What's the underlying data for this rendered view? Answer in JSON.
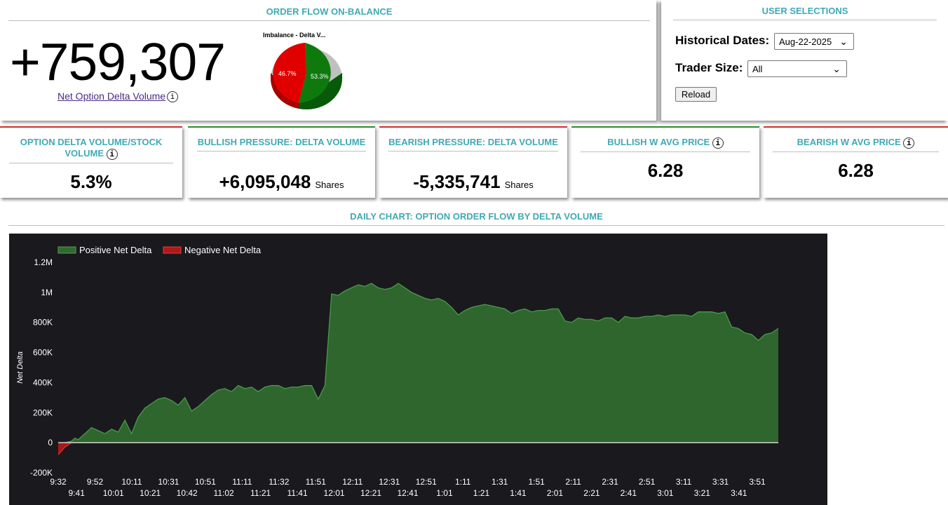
{
  "orderflow": {
    "title": "ORDER FLOW ON-BALANCE",
    "net_value": "+759,307",
    "net_label": "Net Option Delta Volume",
    "info": "i",
    "pie": {
      "title": "Imbalance - Delta V...",
      "slices": [
        {
          "label": "53.3%",
          "value": 53.3,
          "color": "#0e7a0e"
        },
        {
          "label": "46.7%",
          "value": 46.7,
          "color": "#e00000"
        }
      ]
    }
  },
  "user_selections": {
    "title": "USER SELECTIONS",
    "historical_label": "Historical Dates:",
    "historical_value": "Aug-22-2025",
    "trader_label": "Trader Size:",
    "trader_value": "All",
    "reload": "Reload"
  },
  "cards": [
    {
      "title": "OPTION DELTA VOLUME/STOCK VOLUME",
      "value": "5.3%",
      "units": "",
      "info": "i"
    },
    {
      "title": "BULLISH PRESSURE: DELTA VOLUME",
      "value": "+6,095,048",
      "units": "Shares"
    },
    {
      "title": "BEARISH PRESSURE: DELTA VOLUME",
      "value": "-5,335,741",
      "units": "Shares"
    },
    {
      "title": "BULLISH W AVG PRICE",
      "value": "6.28",
      "info": "i"
    },
    {
      "title": "BEARISH W AVG PRICE",
      "value": "6.28",
      "info": "i"
    }
  ],
  "chart_title": "DAILY CHART: OPTION ORDER FLOW BY DELTA VOLUME",
  "colors": {
    "accent": "#3fa9b5",
    "positive": "#2f6a2f",
    "negative": "#b01818",
    "chart_bg": "#1a1a1e"
  },
  "chart_data": {
    "type": "area",
    "title": "DAILY CHART: OPTION ORDER FLOW BY DELTA VOLUME",
    "ylabel": "Net Delta",
    "xlabel": "",
    "ylim": [
      -200000,
      1200000
    ],
    "y_ticks": [
      "1.2M",
      "1M",
      "800K",
      "600K",
      "400K",
      "200K",
      "0",
      "-200K"
    ],
    "y_tick_values": [
      1200000,
      1000000,
      800000,
      600000,
      400000,
      200000,
      0,
      -200000
    ],
    "x_labels_top": [
      "9:32",
      "9:52",
      "10:11",
      "10:31",
      "10:51",
      "11:11",
      "11:32",
      "11:51",
      "12:11",
      "12:31",
      "12:51",
      "1:11",
      "1:31",
      "1:51",
      "2:11",
      "2:31",
      "2:51",
      "3:11",
      "3:31",
      "3:51"
    ],
    "x_labels_bottom": [
      "9:41",
      "10:01",
      "10:21",
      "10:42",
      "11:02",
      "11:21",
      "11:41",
      "12:01",
      "12:21",
      "12:41",
      "1:01",
      "1:21",
      "1:41",
      "2:01",
      "2:21",
      "2:41",
      "3:01",
      "3:21",
      "3:41"
    ],
    "legend": [
      "Positive Net Delta",
      "Negative Net Delta"
    ],
    "series": [
      {
        "name": "Net Delta",
        "x": [
          0,
          2,
          4,
          5,
          6,
          8,
          10,
          12,
          14,
          16,
          18,
          20,
          22,
          24,
          26,
          28,
          30,
          32,
          34,
          36,
          38,
          40,
          42,
          44,
          46,
          48,
          50,
          52,
          54,
          56,
          58,
          60,
          62,
          64,
          66,
          68,
          70,
          72,
          74,
          76,
          78,
          80,
          82,
          84,
          86,
          88,
          90,
          92,
          94,
          96,
          98,
          100,
          102,
          104,
          106,
          108,
          110,
          112,
          114,
          116,
          118,
          120,
          122,
          124,
          126,
          128,
          130,
          132,
          134,
          136,
          138,
          140,
          142,
          144,
          146,
          148,
          150,
          152,
          154,
          156,
          158,
          160,
          162,
          164,
          166,
          168,
          170,
          172,
          174,
          176,
          178,
          180,
          182,
          184,
          186,
          188,
          190,
          192,
          194,
          196,
          198,
          200,
          202,
          204,
          206,
          208,
          210,
          212,
          214,
          216
        ],
        "values": [
          -80000,
          -30000,
          10000,
          30000,
          20000,
          60000,
          100000,
          80000,
          60000,
          90000,
          70000,
          150000,
          60000,
          170000,
          230000,
          260000,
          290000,
          300000,
          280000,
          250000,
          300000,
          210000,
          240000,
          280000,
          320000,
          350000,
          360000,
          340000,
          380000,
          360000,
          370000,
          340000,
          370000,
          380000,
          380000,
          360000,
          370000,
          370000,
          380000,
          380000,
          290000,
          380000,
          990000,
          980000,
          1010000,
          1030000,
          1050000,
          1040000,
          1060000,
          1030000,
          1020000,
          1030000,
          1060000,
          1030000,
          1000000,
          980000,
          960000,
          950000,
          960000,
          940000,
          900000,
          850000,
          880000,
          900000,
          910000,
          920000,
          910000,
          900000,
          890000,
          860000,
          880000,
          890000,
          870000,
          880000,
          880000,
          890000,
          890000,
          810000,
          800000,
          830000,
          820000,
          820000,
          810000,
          830000,
          830000,
          800000,
          840000,
          830000,
          830000,
          840000,
          840000,
          850000,
          840000,
          850000,
          850000,
          850000,
          840000,
          870000,
          870000,
          870000,
          860000,
          870000,
          770000,
          760000,
          730000,
          720000,
          680000,
          720000,
          730000,
          760000
        ]
      }
    ]
  }
}
